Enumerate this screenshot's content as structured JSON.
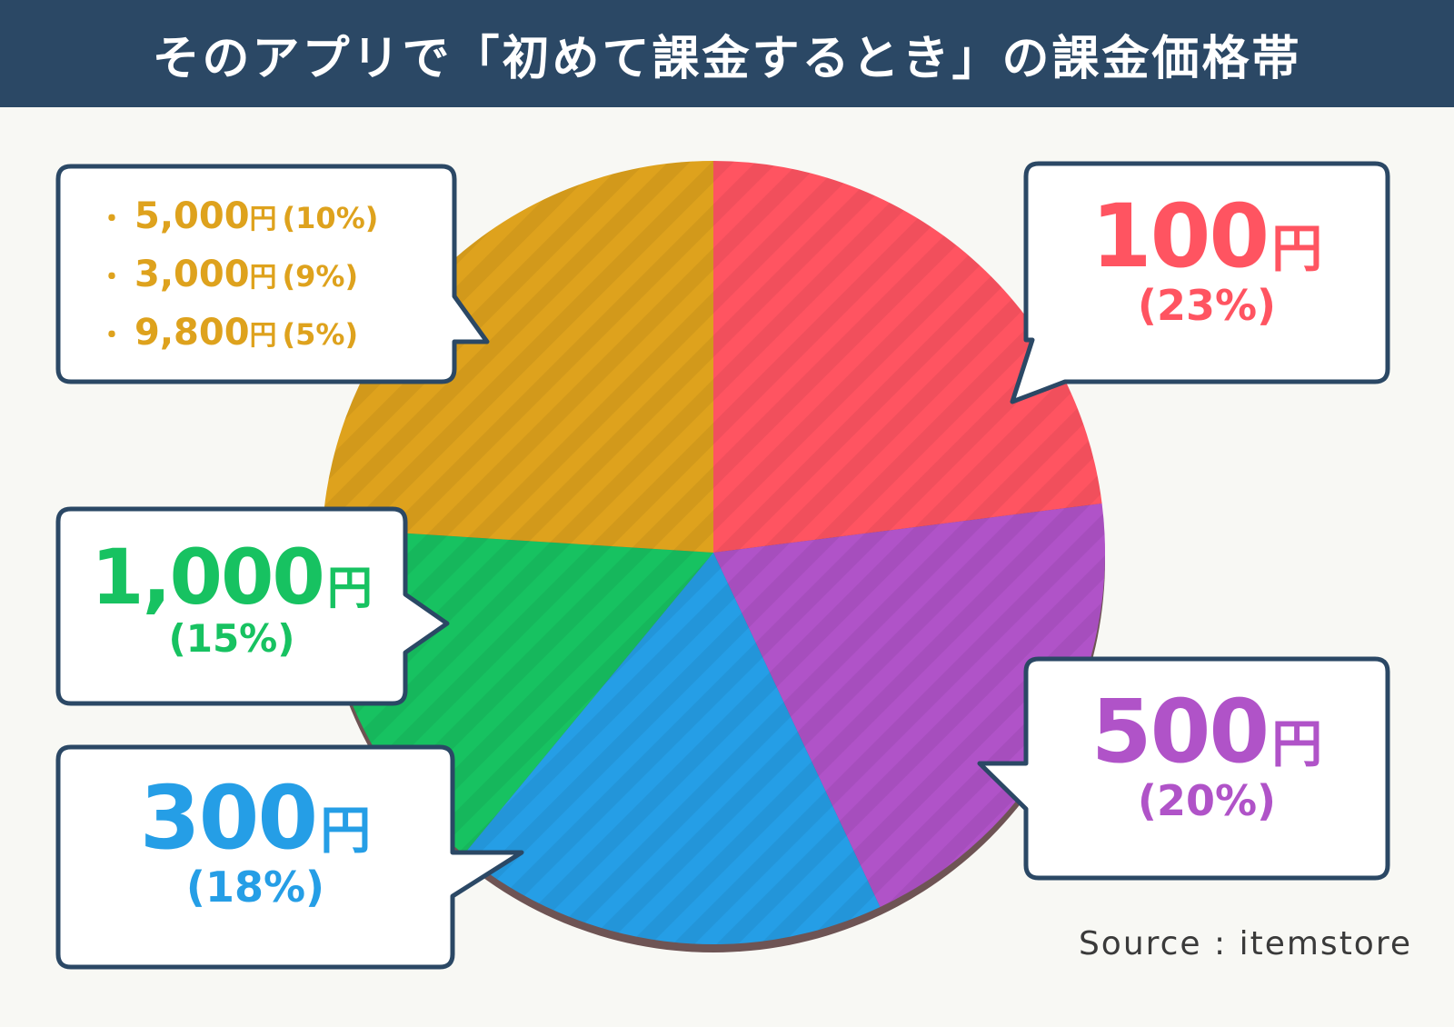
{
  "title": "そのアプリで「初めて課金するとき」の課金価格帯",
  "source": "Source : itemstore",
  "colors": {
    "header_bg": "#2b4865",
    "red": "#ff5461",
    "purple": "#b053c8",
    "blue": "#259ee6",
    "green": "#17c261",
    "gold": "#dea21d",
    "callout_border": "#2b4865",
    "callout_bg": "#ffffff"
  },
  "chart_data": {
    "type": "pie",
    "title": "そのアプリで「初めて課金するとき」の課金価格帯",
    "slices": [
      {
        "label": "100円",
        "value": 23,
        "color": "#ff5461"
      },
      {
        "label": "500円",
        "value": 20,
        "color": "#b053c8"
      },
      {
        "label": "300円",
        "value": 18,
        "color": "#259ee6"
      },
      {
        "label": "1,000円",
        "value": 15,
        "color": "#17c261"
      },
      {
        "label": "5,000円・3,000円・9,800円",
        "value": 24,
        "color": "#dea21d",
        "breakdown": [
          {
            "label": "5,000円",
            "value": 10
          },
          {
            "label": "3,000円",
            "value": 9
          },
          {
            "label": "9,800円",
            "value": 5
          }
        ]
      }
    ]
  },
  "labels": {
    "p100": {
      "num": "100",
      "yen": "円",
      "pct": "(23%)"
    },
    "p500": {
      "num": "500",
      "yen": "円",
      "pct": "(20%)"
    },
    "p300": {
      "num": "300",
      "yen": "円",
      "pct": "(18%)"
    },
    "p1000": {
      "num": "1,000",
      "yen": "円",
      "pct": "(15%)"
    },
    "others": [
      {
        "bullet": "・",
        "num": "5,000",
        "yen": "円",
        "pct": "(10%)"
      },
      {
        "bullet": "・",
        "num": "3,000",
        "yen": "円",
        "pct": "(9%)"
      },
      {
        "bullet": "・",
        "num": "9,800",
        "yen": "円",
        "pct": "(5%)"
      }
    ]
  }
}
